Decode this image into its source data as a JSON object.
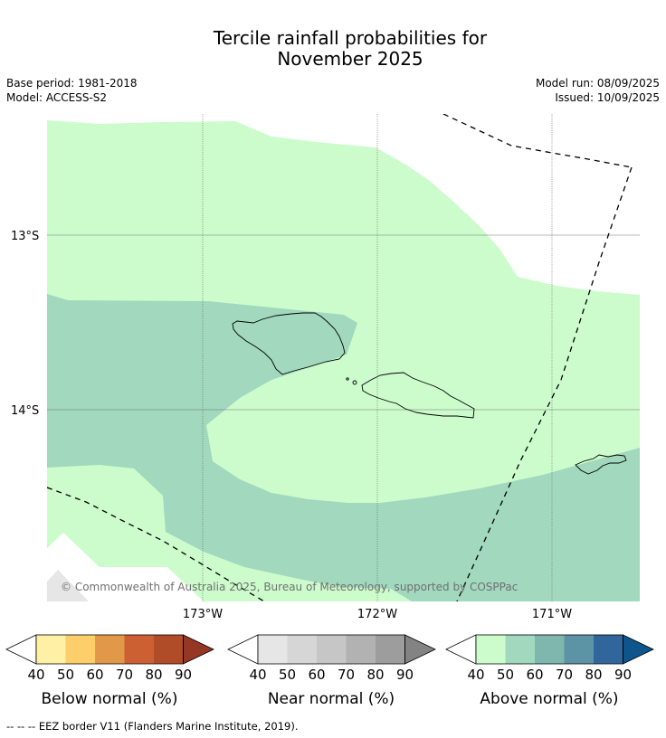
{
  "title_line1": "Tercile rainfall probabilities for",
  "title_line2": "November 2025",
  "meta": {
    "base_period": "Base period: 1981-2018",
    "model": "Model: ACCESS-S2",
    "model_run": "Model run: 08/09/2025",
    "issued": "Issued: 10/09/2025"
  },
  "map": {
    "lat_labels": [
      "13°S",
      "14°S"
    ],
    "lon_labels": [
      "173°W",
      "172°W",
      "171°W"
    ],
    "copyright": "© Commonwealth of Australia 2025, Bureau of Meteorology, supported by COSPPac"
  },
  "colorbars": [
    {
      "label": "Below normal (%)",
      "ticks": [
        "40",
        "50",
        "60",
        "70",
        "80",
        "90"
      ],
      "colors": [
        "#fef0a5",
        "#fdce6a",
        "#e19848",
        "#cc6033",
        "#b04c28",
        "#963624"
      ]
    },
    {
      "label": "Near normal (%)",
      "ticks": [
        "40",
        "50",
        "60",
        "70",
        "80",
        "90"
      ],
      "colors": [
        "#e6e6e6",
        "#d6d6d6",
        "#c6c6c6",
        "#b2b2b2",
        "#9d9d9d",
        "#838383"
      ]
    },
    {
      "label": "Above normal (%)",
      "ticks": [
        "40",
        "50",
        "60",
        "70",
        "80",
        "90"
      ],
      "colors": [
        "#ccfccc",
        "#a1d8be",
        "#7fb6ad",
        "#5d94a5",
        "#31669c",
        "#10548c"
      ]
    }
  ],
  "footnote": "--  --  -- EEZ border V11 (Flanders Marine Institute, 2019)."
}
